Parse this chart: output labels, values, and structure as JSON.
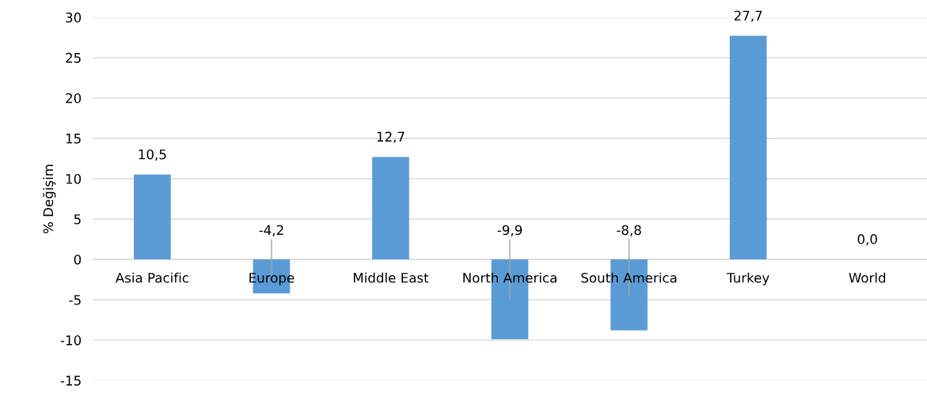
{
  "chart_data": {
    "type": "bar",
    "ylabel": "% Değişim",
    "categories": [
      "Asia Pacific",
      "Europe",
      "Middle East",
      "North America",
      "South America",
      "Turkey",
      "World"
    ],
    "values": [
      10.5,
      -4.2,
      12.7,
      -9.9,
      -8.8,
      27.7,
      0.0
    ],
    "value_labels": [
      "10,5",
      "-4,2",
      "12,7",
      "-9,9",
      "-8,8",
      "27,7",
      "0,0"
    ],
    "color": "#5b9bd5",
    "ylim": [
      -15,
      30
    ],
    "yticks": [
      -15,
      -10,
      -5,
      0,
      5,
      10,
      15,
      20,
      25,
      30
    ],
    "grid": "y"
  }
}
